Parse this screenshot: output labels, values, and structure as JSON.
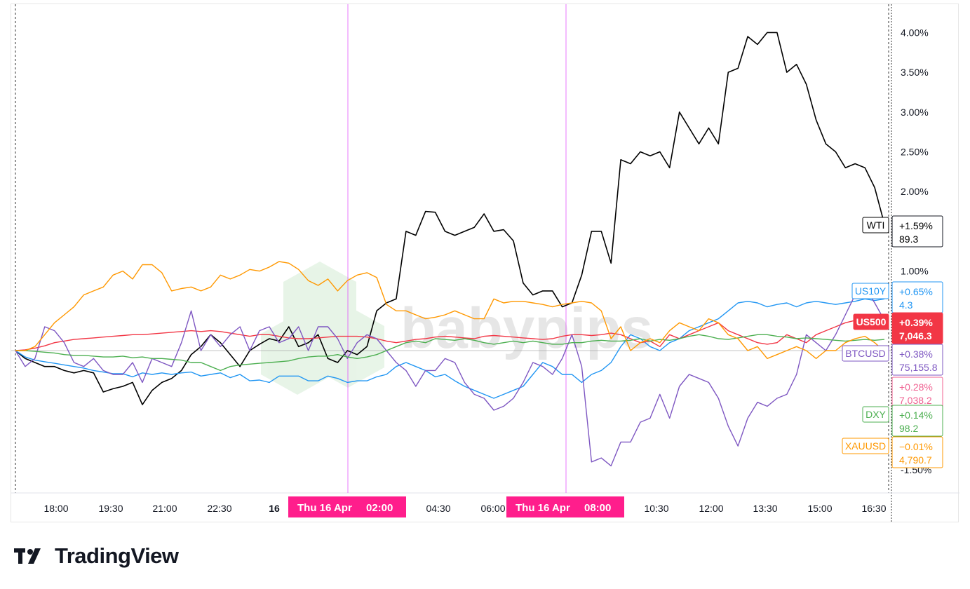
{
  "chart_data": {
    "type": "line",
    "y_unit": "%",
    "ylim": [
      -1.6,
      4.3
    ],
    "y_ticks": [
      "4.00%",
      "3.50%",
      "3.00%",
      "2.50%",
      "2.00%",
      "1.00%",
      "-1.50%"
    ],
    "x_ticks": [
      "18:00",
      "19:30",
      "21:00",
      "22:30",
      "16",
      "04:30",
      "06:00",
      "10:30",
      "12:00",
      "13:30",
      "15:00",
      "16:30"
    ],
    "highlighted_times": [
      {
        "date": "Thu 16 Apr",
        "time": "02:00"
      },
      {
        "date": "Thu 16 Apr",
        "time": "08:00"
      }
    ],
    "grid": false,
    "watermark": "babypips",
    "series": [
      {
        "name": "WTI",
        "color": "#000000",
        "change": "+1.59%",
        "price": "89.3",
        "values": [
          0,
          -0.1,
          -0.15,
          -0.2,
          -0.2,
          -0.25,
          -0.28,
          -0.25,
          -0.28,
          -0.52,
          -0.48,
          -0.45,
          -0.4,
          -0.68,
          -0.5,
          -0.4,
          -0.35,
          -0.25,
          -0.05,
          0.05,
          0.2,
          0.1,
          -0.05,
          -0.2,
          0,
          0.08,
          0.15,
          0.12,
          0.3,
          0.05,
          0.1,
          0.2,
          -0.1,
          -0.15,
          0,
          -0.05,
          0.05,
          0.5,
          0.6,
          0.65,
          1.5,
          1.45,
          1.75,
          1.74,
          1.5,
          1.45,
          1.5,
          1.55,
          1.72,
          1.5,
          1.52,
          1.38,
          0.85,
          0.7,
          0.75,
          0.75,
          0.55,
          0.6,
          0.95,
          1.5,
          1.5,
          1.1,
          2.4,
          2.35,
          2.5,
          2.45,
          2.5,
          2.3,
          3.0,
          2.8,
          2.6,
          2.8,
          2.6,
          3.5,
          3.55,
          3.95,
          3.85,
          4.0,
          4.0,
          3.5,
          3.6,
          3.35,
          2.9,
          2.6,
          2.5,
          2.3,
          2.35,
          2.3,
          2.05,
          1.59
        ]
      },
      {
        "name": "US10Y",
        "color": "#2196f3",
        "change": "+0.65%",
        "price": "4.3",
        "values": [
          0,
          -0.08,
          -0.12,
          -0.14,
          -0.16,
          -0.18,
          -0.2,
          -0.22,
          -0.25,
          -0.27,
          -0.29,
          -0.29,
          -0.33,
          -0.28,
          -0.3,
          -0.28,
          -0.3,
          -0.28,
          -0.27,
          -0.32,
          -0.3,
          -0.28,
          -0.34,
          -0.3,
          -0.38,
          -0.37,
          -0.4,
          -0.32,
          -0.32,
          -0.32,
          -0.38,
          -0.38,
          -0.32,
          -0.35,
          -0.4,
          -0.38,
          -0.38,
          -0.33,
          -0.3,
          -0.2,
          -0.15,
          -0.2,
          -0.25,
          -0.33,
          -0.3,
          -0.38,
          -0.45,
          -0.5,
          -0.55,
          -0.6,
          -0.55,
          -0.5,
          -0.45,
          -0.3,
          -0.15,
          -0.2,
          -0.3,
          -0.3,
          -0.4,
          -0.3,
          -0.25,
          -0.15,
          0.05,
          0.2,
          0.15,
          0.05,
          0.0,
          0.1,
          0.15,
          0.25,
          0.3,
          0.35,
          0.4,
          0.5,
          0.6,
          0.62,
          0.6,
          0.55,
          0.58,
          0.6,
          0.55,
          0.6,
          0.62,
          0.6,
          0.58,
          0.6,
          0.62,
          0.65,
          0.63,
          0.65
        ]
      },
      {
        "name": "US500",
        "color": "#f23645",
        "change": "+0.39%",
        "price": "7,046.3",
        "values": [
          0,
          0.01,
          0.03,
          0.06,
          0.1,
          0.12,
          0.14,
          0.15,
          0.16,
          0.17,
          0.18,
          0.19,
          0.2,
          0.2,
          0.21,
          0.22,
          0.23,
          0.24,
          0.25,
          0.24,
          0.25,
          0.24,
          0.22,
          0.2,
          0.18,
          0.2,
          0.2,
          0.18,
          0.16,
          0.15,
          0.15,
          0.16,
          0.17,
          0.18,
          0.18,
          0.18,
          0.17,
          0.15,
          0.12,
          0.1,
          0.12,
          0.14,
          0.15,
          0.17,
          0.18,
          0.17,
          0.16,
          0.15,
          0.18,
          0.19,
          0.18,
          0.17,
          0.16,
          0.15,
          0.14,
          0.15,
          0.18,
          0.2,
          0.2,
          0.19,
          0.2,
          0.22,
          0.2,
          0.15,
          0.1,
          0.12,
          0.05,
          0.2,
          0.15,
          0.2,
          0.25,
          0.3,
          0.35,
          0.25,
          0.2,
          0.15,
          0.1,
          0.08,
          0.1,
          0.2,
          0.15,
          0.1,
          0.2,
          0.25,
          0.3,
          0.35,
          0.38,
          0.35,
          0.38,
          0.39
        ]
      },
      {
        "name": "",
        "color": "#f06292",
        "change": "+0.28%",
        "price": "7,038.2",
        "values": []
      },
      {
        "name": "BTCUSD",
        "color": "#7e57c2",
        "change": "+0.38%",
        "price": "75,155.8",
        "values": [
          0,
          -0.2,
          -0.1,
          0.3,
          0.25,
          0.1,
          -0.15,
          -0.2,
          -0.1,
          -0.25,
          -0.3,
          -0.3,
          -0.15,
          -0.4,
          -0.1,
          -0.15,
          -0.2,
          0.1,
          0.5,
          0.0,
          0.2,
          0.05,
          0.2,
          0.3,
          0.0,
          0.25,
          0.3,
          0.1,
          0.15,
          0.3,
          0.0,
          0.3,
          0.3,
          0.15,
          -0.1,
          0.1,
          0.2,
          0.15,
          0.0,
          -0.15,
          -0.25,
          -0.45,
          -0.25,
          -0.25,
          -0.1,
          -0.15,
          -0.4,
          -0.55,
          -0.6,
          -0.75,
          -0.7,
          -0.6,
          -0.4,
          -0.15,
          -0.2,
          -0.3,
          -0.1,
          0.2,
          -0.2,
          -1.4,
          -1.35,
          -1.45,
          -1.15,
          -1.15,
          -0.9,
          -0.85,
          -0.55,
          -0.85,
          -0.45,
          -0.3,
          -0.35,
          -0.4,
          -0.6,
          -0.95,
          -1.2,
          -0.85,
          -0.65,
          -0.7,
          -0.6,
          -0.55,
          -0.3,
          0.2,
          0.1,
          0.0,
          0.2,
          0.45,
          0.7,
          0.8,
          0.6,
          0.38
        ]
      },
      {
        "name": "DXY",
        "color": "#4caf50",
        "change": "+0.14%",
        "price": "98.2",
        "values": [
          0,
          0.0,
          -0.01,
          -0.02,
          -0.03,
          -0.05,
          -0.06,
          -0.06,
          -0.07,
          -0.08,
          -0.08,
          -0.07,
          -0.09,
          -0.08,
          -0.1,
          -0.1,
          -0.11,
          -0.12,
          -0.15,
          -0.15,
          -0.2,
          -0.25,
          -0.2,
          -0.18,
          -0.17,
          -0.16,
          -0.15,
          -0.14,
          -0.13,
          -0.1,
          -0.08,
          -0.07,
          -0.07,
          -0.05,
          -0.08,
          -0.1,
          -0.08,
          -0.05,
          0.0,
          0.05,
          0.1,
          0.12,
          0.1,
          0.15,
          0.14,
          0.13,
          0.15,
          0.13,
          0.1,
          0.08,
          0.1,
          0.12,
          0.1,
          0.12,
          0.1,
          0.08,
          0.08,
          0.1,
          0.1,
          0.12,
          0.13,
          0.12,
          0.12,
          0.13,
          0.15,
          0.12,
          0.14,
          0.13,
          0.15,
          0.18,
          0.2,
          0.18,
          0.15,
          0.14,
          0.16,
          0.18,
          0.2,
          0.2,
          0.18,
          0.17,
          0.15,
          0.16,
          0.15,
          0.14,
          0.13,
          0.12,
          0.13,
          0.14,
          0.13,
          0.14
        ]
      },
      {
        "name": "XAUUSD",
        "color": "#ff9800",
        "change": "−0.01%",
        "price": "4,790.7",
        "values": [
          0,
          0.0,
          0.05,
          0.2,
          0.35,
          0.45,
          0.55,
          0.7,
          0.75,
          0.8,
          0.95,
          1.0,
          0.9,
          1.08,
          1.08,
          0.98,
          0.75,
          0.78,
          0.8,
          0.75,
          0.8,
          0.95,
          0.9,
          0.95,
          1.02,
          1.0,
          1.05,
          1.12,
          1.1,
          1.02,
          0.88,
          0.82,
          0.9,
          0.75,
          0.88,
          0.95,
          0.98,
          0.92,
          0.58,
          0.5,
          0.5,
          0.45,
          0.4,
          0.42,
          0.45,
          0.5,
          0.45,
          0.4,
          0.4,
          0.65,
          0.6,
          0.62,
          0.62,
          0.6,
          0.58,
          0.55,
          0.58,
          0.6,
          0.62,
          0.6,
          0.5,
          0.15,
          0.3,
          0.0,
          0.1,
          0.15,
          0.1,
          0.25,
          0.35,
          0.3,
          0.25,
          0.4,
          0.35,
          0.2,
          0.15,
          0.0,
          0.05,
          -0.1,
          -0.05,
          0.0,
          0.05,
          0.0,
          -0.1,
          0.0,
          0.0,
          0.1,
          0.15,
          0.18,
          0.1,
          -0.01
        ]
      }
    ]
  },
  "brand": {
    "name": "TradingView"
  }
}
